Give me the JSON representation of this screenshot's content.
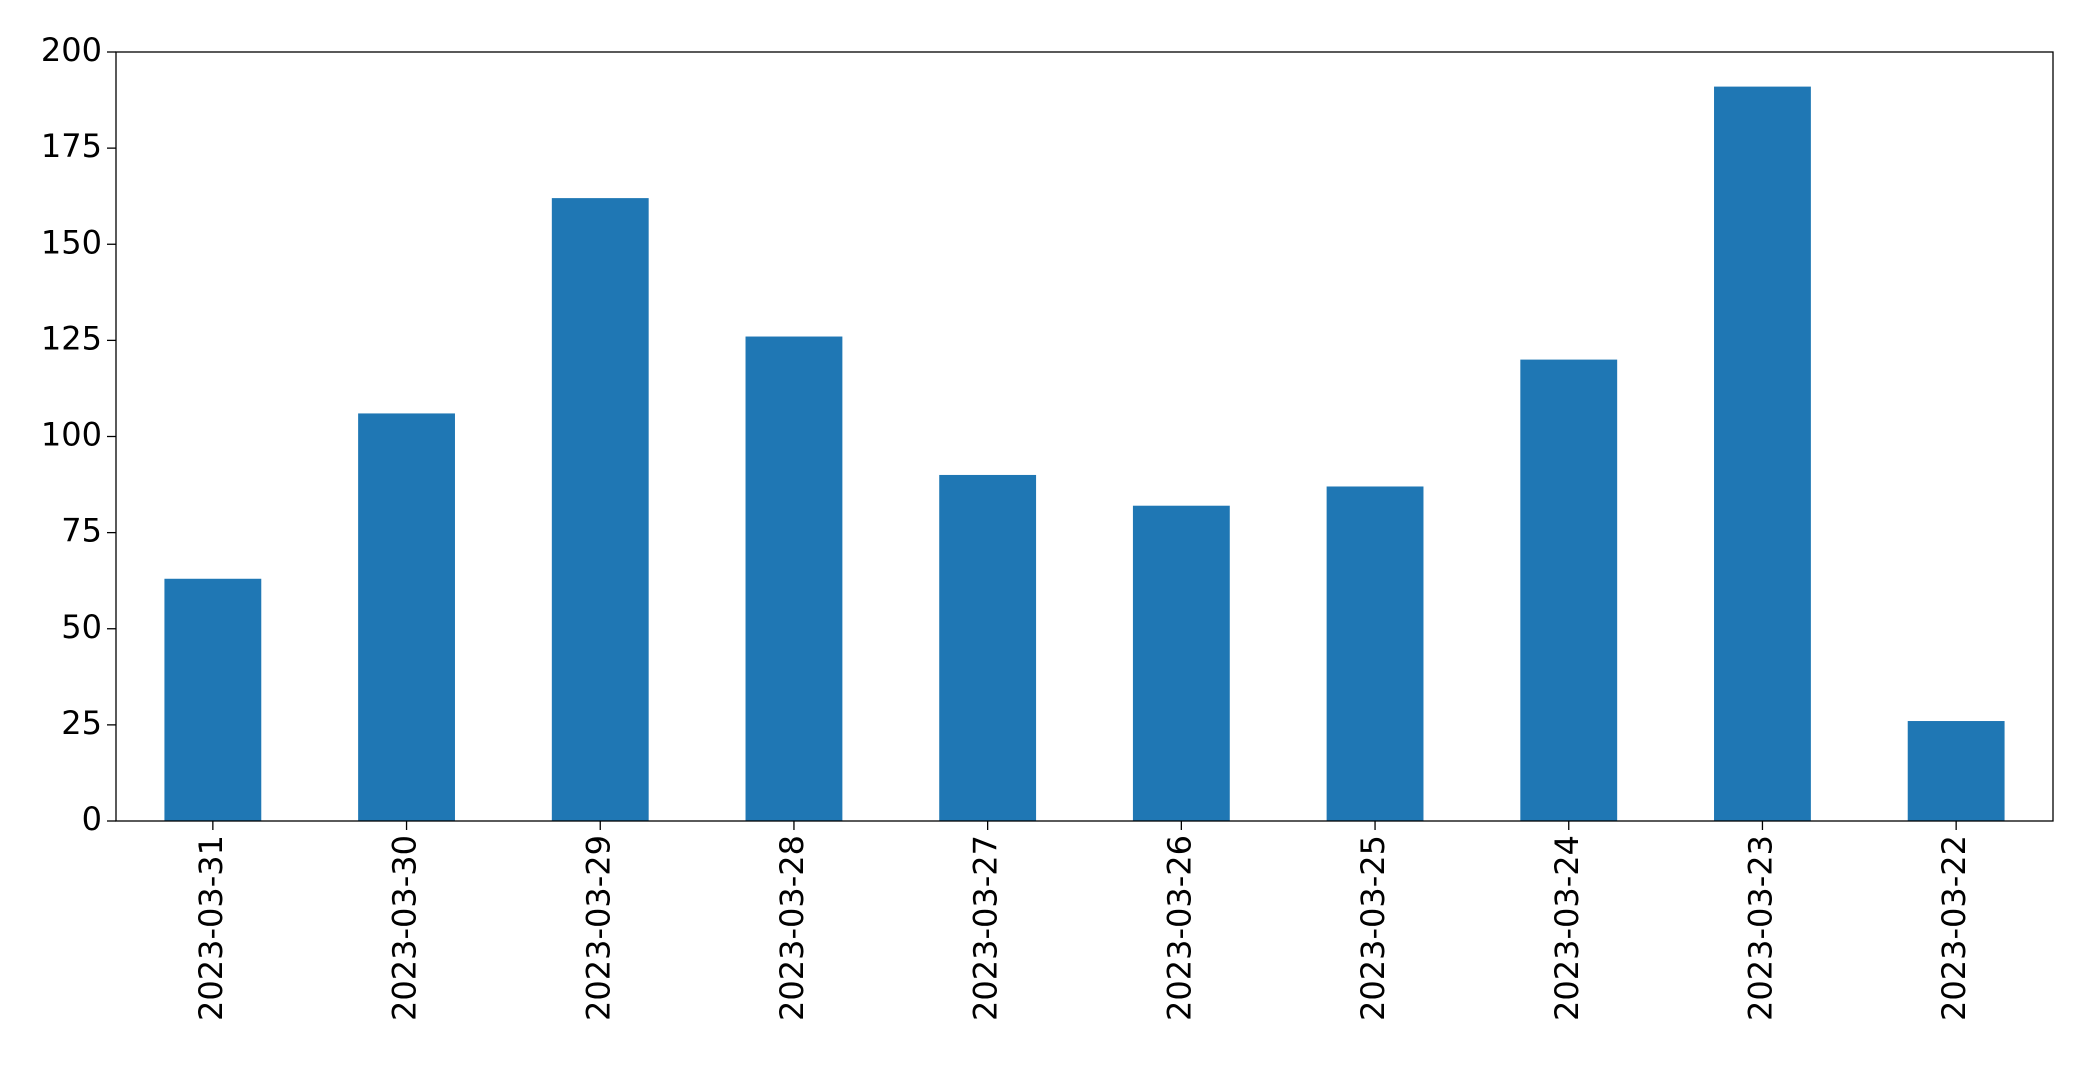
{
  "chart_data": {
    "type": "bar",
    "categories": [
      "2023-03-31",
      "2023-03-30",
      "2023-03-29",
      "2023-03-28",
      "2023-03-27",
      "2023-03-26",
      "2023-03-25",
      "2023-03-24",
      "2023-03-23",
      "2023-03-22"
    ],
    "values": [
      63,
      106,
      162,
      126,
      90,
      82,
      87,
      120,
      191,
      26
    ],
    "color": "#1f77b4",
    "ylim": [
      0,
      200
    ],
    "yticks": [
      0,
      25,
      50,
      75,
      100,
      125,
      150,
      175,
      200
    ],
    "grid": false
  }
}
